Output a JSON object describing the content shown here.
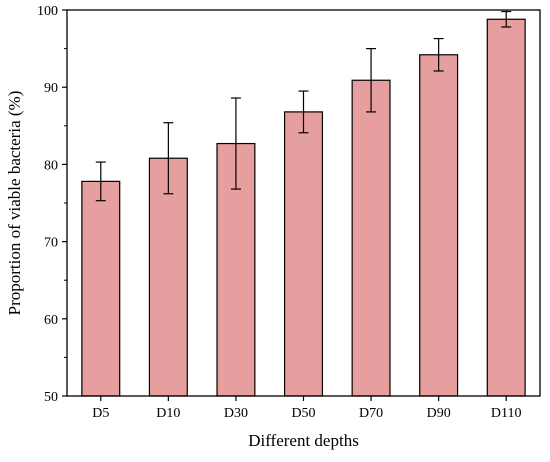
{
  "chart_data": {
    "type": "bar",
    "xlabel": "Different depths",
    "ylabel": "Proportion of viable bacteria (%)",
    "categories": [
      "D5",
      "D10",
      "D30",
      "D50",
      "D70",
      "D90",
      "D110"
    ],
    "values": [
      77.8,
      80.8,
      82.7,
      86.8,
      90.9,
      94.2,
      98.8
    ],
    "error": [
      2.5,
      4.6,
      5.9,
      2.7,
      4.1,
      2.1,
      1.0
    ],
    "ylim": [
      50,
      100
    ],
    "yticks": [
      50,
      60,
      70,
      80,
      90,
      100
    ],
    "grid": false,
    "legend": "none",
    "bar_color": "#e79e9e",
    "edge_color": "#000000"
  }
}
